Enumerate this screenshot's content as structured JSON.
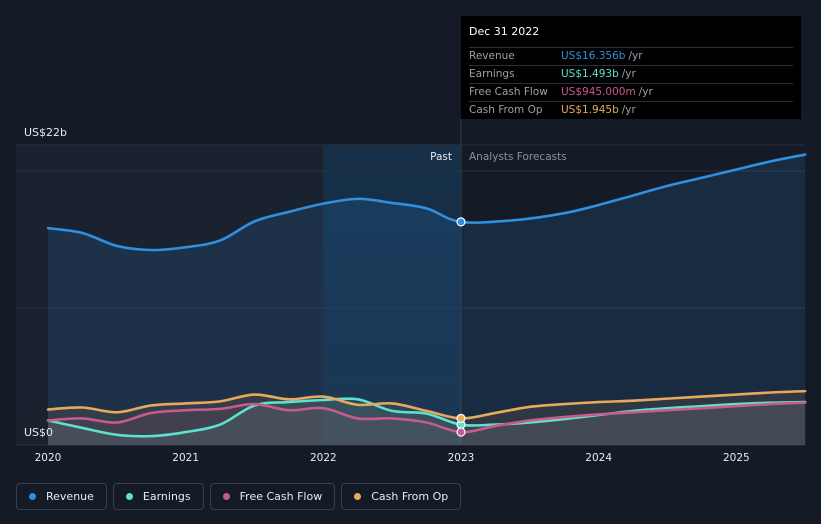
{
  "tooltip": {
    "date": "Dec 31 2022",
    "rows": [
      {
        "label": "Revenue",
        "value": "US$16.356b",
        "unit": "/yr",
        "color": "#2f8fe0"
      },
      {
        "label": "Earnings",
        "value": "US$1.493b",
        "unit": "/yr",
        "color": "#5ee0cf"
      },
      {
        "label": "Free Cash Flow",
        "value": "US$945.000m",
        "unit": "/yr",
        "color": "#c85a8c"
      },
      {
        "label": "Cash From Op",
        "value": "US$1.945b",
        "unit": "/yr",
        "color": "#e8a95c"
      }
    ]
  },
  "legend": [
    {
      "label": "Revenue",
      "color": "#2f8fe0"
    },
    {
      "label": "Earnings",
      "color": "#5ee0cf"
    },
    {
      "label": "Free Cash Flow",
      "color": "#c85a8c"
    },
    {
      "label": "Cash From Op",
      "color": "#e8a95c"
    }
  ],
  "colors": {
    "background": "#151b26",
    "past_shade": "#1a2230",
    "highlight": "#15324d",
    "grid": "#2a313d",
    "axis_text": "#e8eaed"
  },
  "chart_data": {
    "type": "line",
    "y_unit": "US$ billions",
    "ylim": [
      0,
      22
    ],
    "y_ticks": [
      {
        "value": 22,
        "label": "US$22b"
      },
      {
        "value": 0,
        "label": "US$0"
      }
    ],
    "x_range": [
      2019.9,
      2025.5
    ],
    "x_ticks": [
      "2020",
      "2021",
      "2022",
      "2023",
      "2024",
      "2025"
    ],
    "divider": 2023.0,
    "highlight_range": [
      2022.0,
      2023.0
    ],
    "past_label": "Past",
    "forecast_label": "Analysts Forecasts",
    "grid": true,
    "legend_position": "bottom",
    "series": [
      {
        "name": "Revenue",
        "color": "#2f8fe0",
        "fill": true,
        "points": [
          [
            2020.0,
            15.9
          ],
          [
            2020.25,
            15.55
          ],
          [
            2020.5,
            14.6
          ],
          [
            2020.75,
            14.3
          ],
          [
            2021.0,
            14.5
          ],
          [
            2021.25,
            15.0
          ],
          [
            2021.5,
            16.4
          ],
          [
            2021.75,
            17.1
          ],
          [
            2022.0,
            17.7
          ],
          [
            2022.25,
            18.05
          ],
          [
            2022.5,
            17.75
          ],
          [
            2022.75,
            17.35
          ],
          [
            2023.0,
            16.36
          ],
          [
            2023.4,
            16.5
          ],
          [
            2023.75,
            17.0
          ],
          [
            2024.0,
            17.6
          ],
          [
            2024.25,
            18.3
          ],
          [
            2024.5,
            19.0
          ],
          [
            2024.75,
            19.6
          ],
          [
            2025.0,
            20.2
          ],
          [
            2025.25,
            20.8
          ],
          [
            2025.5,
            21.3
          ]
        ]
      },
      {
        "name": "Earnings",
        "color": "#5ee0cf",
        "fill": true,
        "points": [
          [
            2020.0,
            1.8
          ],
          [
            2020.25,
            1.25
          ],
          [
            2020.5,
            0.75
          ],
          [
            2020.75,
            0.65
          ],
          [
            2021.0,
            0.95
          ],
          [
            2021.25,
            1.5
          ],
          [
            2021.5,
            2.9
          ],
          [
            2021.75,
            3.15
          ],
          [
            2022.0,
            3.3
          ],
          [
            2022.25,
            3.35
          ],
          [
            2022.5,
            2.5
          ],
          [
            2022.75,
            2.3
          ],
          [
            2023.0,
            1.49
          ],
          [
            2023.25,
            1.5
          ],
          [
            2023.5,
            1.65
          ],
          [
            2023.75,
            1.9
          ],
          [
            2024.0,
            2.2
          ],
          [
            2024.25,
            2.5
          ],
          [
            2024.5,
            2.7
          ],
          [
            2024.75,
            2.85
          ],
          [
            2025.0,
            3.0
          ],
          [
            2025.25,
            3.1
          ],
          [
            2025.5,
            3.15
          ]
        ]
      },
      {
        "name": "Free Cash Flow",
        "color": "#c85a8c",
        "fill": true,
        "points": [
          [
            2020.0,
            1.8
          ],
          [
            2020.25,
            1.95
          ],
          [
            2020.5,
            1.65
          ],
          [
            2020.75,
            2.35
          ],
          [
            2021.0,
            2.55
          ],
          [
            2021.25,
            2.65
          ],
          [
            2021.5,
            3.0
          ],
          [
            2021.75,
            2.55
          ],
          [
            2022.0,
            2.7
          ],
          [
            2022.25,
            1.95
          ],
          [
            2022.5,
            1.95
          ],
          [
            2022.75,
            1.65
          ],
          [
            2023.0,
            0.95
          ],
          [
            2023.25,
            1.4
          ],
          [
            2023.5,
            1.8
          ],
          [
            2023.75,
            2.05
          ],
          [
            2024.0,
            2.25
          ],
          [
            2024.25,
            2.4
          ],
          [
            2024.5,
            2.55
          ],
          [
            2024.75,
            2.7
          ],
          [
            2025.0,
            2.85
          ],
          [
            2025.25,
            3.0
          ],
          [
            2025.5,
            3.1
          ]
        ]
      },
      {
        "name": "Cash From Op",
        "color": "#e8a95c",
        "fill": true,
        "points": [
          [
            2020.0,
            2.6
          ],
          [
            2020.25,
            2.75
          ],
          [
            2020.5,
            2.4
          ],
          [
            2020.75,
            2.9
          ],
          [
            2021.0,
            3.05
          ],
          [
            2021.25,
            3.2
          ],
          [
            2021.5,
            3.7
          ],
          [
            2021.75,
            3.35
          ],
          [
            2022.0,
            3.55
          ],
          [
            2022.25,
            2.95
          ],
          [
            2022.5,
            3.05
          ],
          [
            2022.75,
            2.5
          ],
          [
            2023.0,
            1.95
          ],
          [
            2023.25,
            2.35
          ],
          [
            2023.5,
            2.8
          ],
          [
            2023.75,
            3.0
          ],
          [
            2024.0,
            3.15
          ],
          [
            2024.25,
            3.25
          ],
          [
            2024.5,
            3.4
          ],
          [
            2024.75,
            3.55
          ],
          [
            2025.0,
            3.7
          ],
          [
            2025.25,
            3.85
          ],
          [
            2025.5,
            3.95
          ]
        ]
      }
    ],
    "markers": [
      {
        "series": "Revenue",
        "x": 2023.0,
        "y": 16.36
      },
      {
        "series": "Earnings",
        "x": 2023.0,
        "y": 1.49
      },
      {
        "series": "Free Cash Flow",
        "x": 2023.0,
        "y": 0.95
      },
      {
        "series": "Cash From Op",
        "x": 2023.0,
        "y": 1.95
      }
    ]
  }
}
